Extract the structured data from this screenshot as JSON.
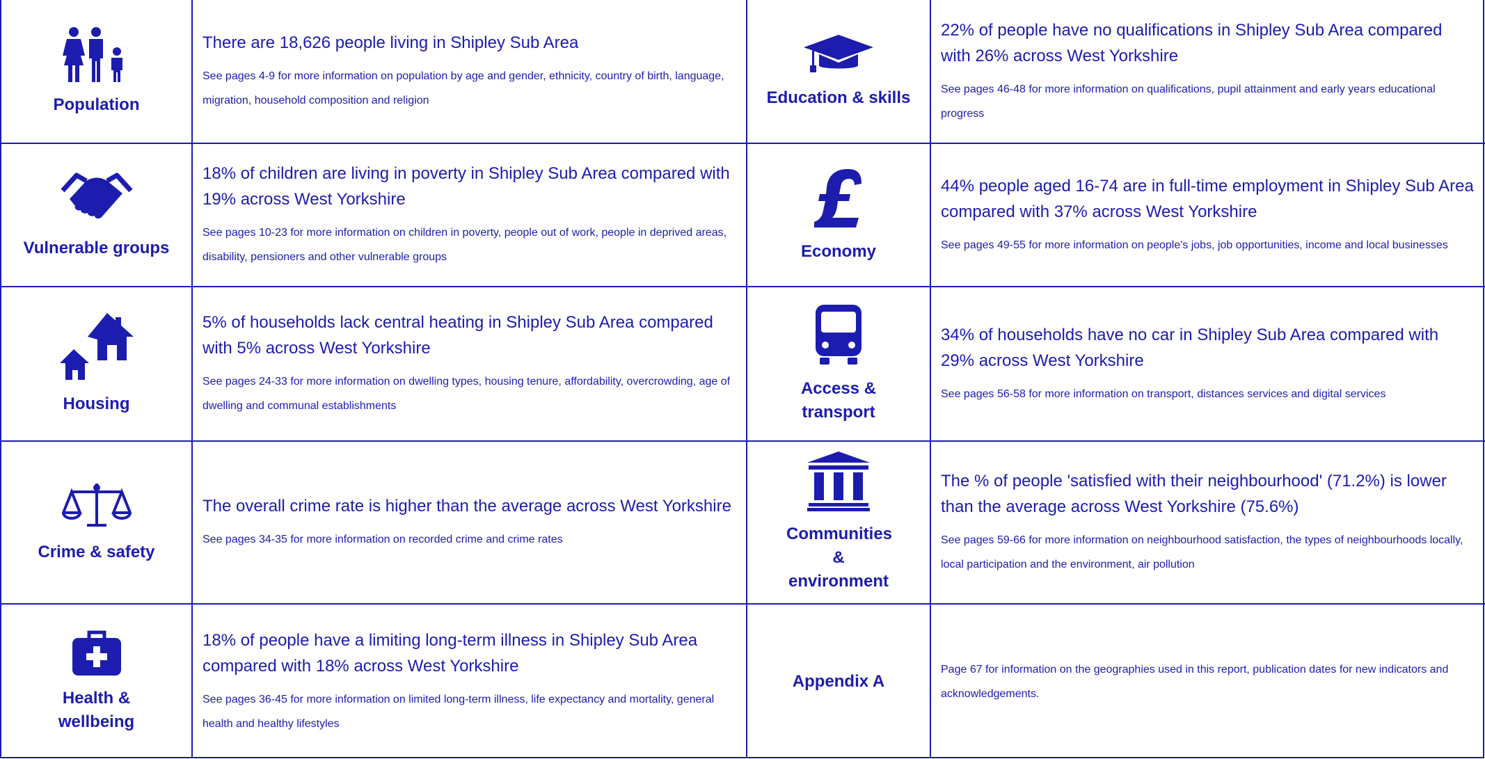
{
  "sections": [
    {
      "label": "Population",
      "headline": "There are 18,626 people living in Shipley Sub Area",
      "detail": "See pages 4-9 for more information on population by age and gender, ethnicity, country of birth, language, migration, household composition and religion"
    },
    {
      "label": "Education & skills",
      "headline": "22% of people have no qualifications in Shipley Sub Area compared with 26% across West Yorkshire",
      "detail": "See pages 46-48 for more information on qualifications, pupil attainment and early years educational progress"
    },
    {
      "label": "Vulnerable groups",
      "headline": "18% of children are living in poverty in Shipley Sub Area compared with 19% across West Yorkshire",
      "detail": "See pages 10-23 for more information on children in poverty, people out of work, people in deprived areas, disability, pensioners and other vulnerable groups"
    },
    {
      "label": "Economy",
      "headline": "44% people aged 16-74 are in full-time employment in Shipley Sub Area compared with 37% across West Yorkshire",
      "detail": "See pages 49-55 for more information on people's jobs, job opportunities, income and local businesses"
    },
    {
      "label": "Housing",
      "headline": "5% of households lack central heating in Shipley Sub Area compared with 5% across West Yorkshire",
      "detail": "See pages 24-33 for more information on dwelling types, housing tenure, affordability, overcrowding, age of dwelling and communal establishments"
    },
    {
      "label": "Access & transport",
      "headline": "34% of households have no car in Shipley Sub Area compared with 29% across West Yorkshire",
      "detail": "See pages 56-58 for more information on transport, distances services and digital services"
    },
    {
      "label": "Crime & safety",
      "headline": "The overall crime rate is higher than the average across West Yorkshire",
      "detail": "See pages 34-35 for more information on recorded crime and crime rates"
    },
    {
      "label": "Communities & environment",
      "headline": "The % of people 'satisfied with their neighbourhood' (71.2%) is lower than the average across West Yorkshire (75.6%)",
      "detail": "See pages 59-66 for more information on neighbourhood satisfaction, the types of neighbourhoods locally, local participation and the environment, air pollution"
    },
    {
      "label": "Health & wellbeing",
      "headline": "18% of people have a limiting long-term illness in Shipley Sub Area compared with 18% across West Yorkshire",
      "detail": "See pages 36-45 for more information on limited long-term illness, life expectancy and mortality, general health and healthy lifestyles"
    },
    {
      "label": "Appendix A",
      "detail": "Page 67 for information on the geographies used in this report, publication dates for new indicators and acknowledgements."
    }
  ]
}
